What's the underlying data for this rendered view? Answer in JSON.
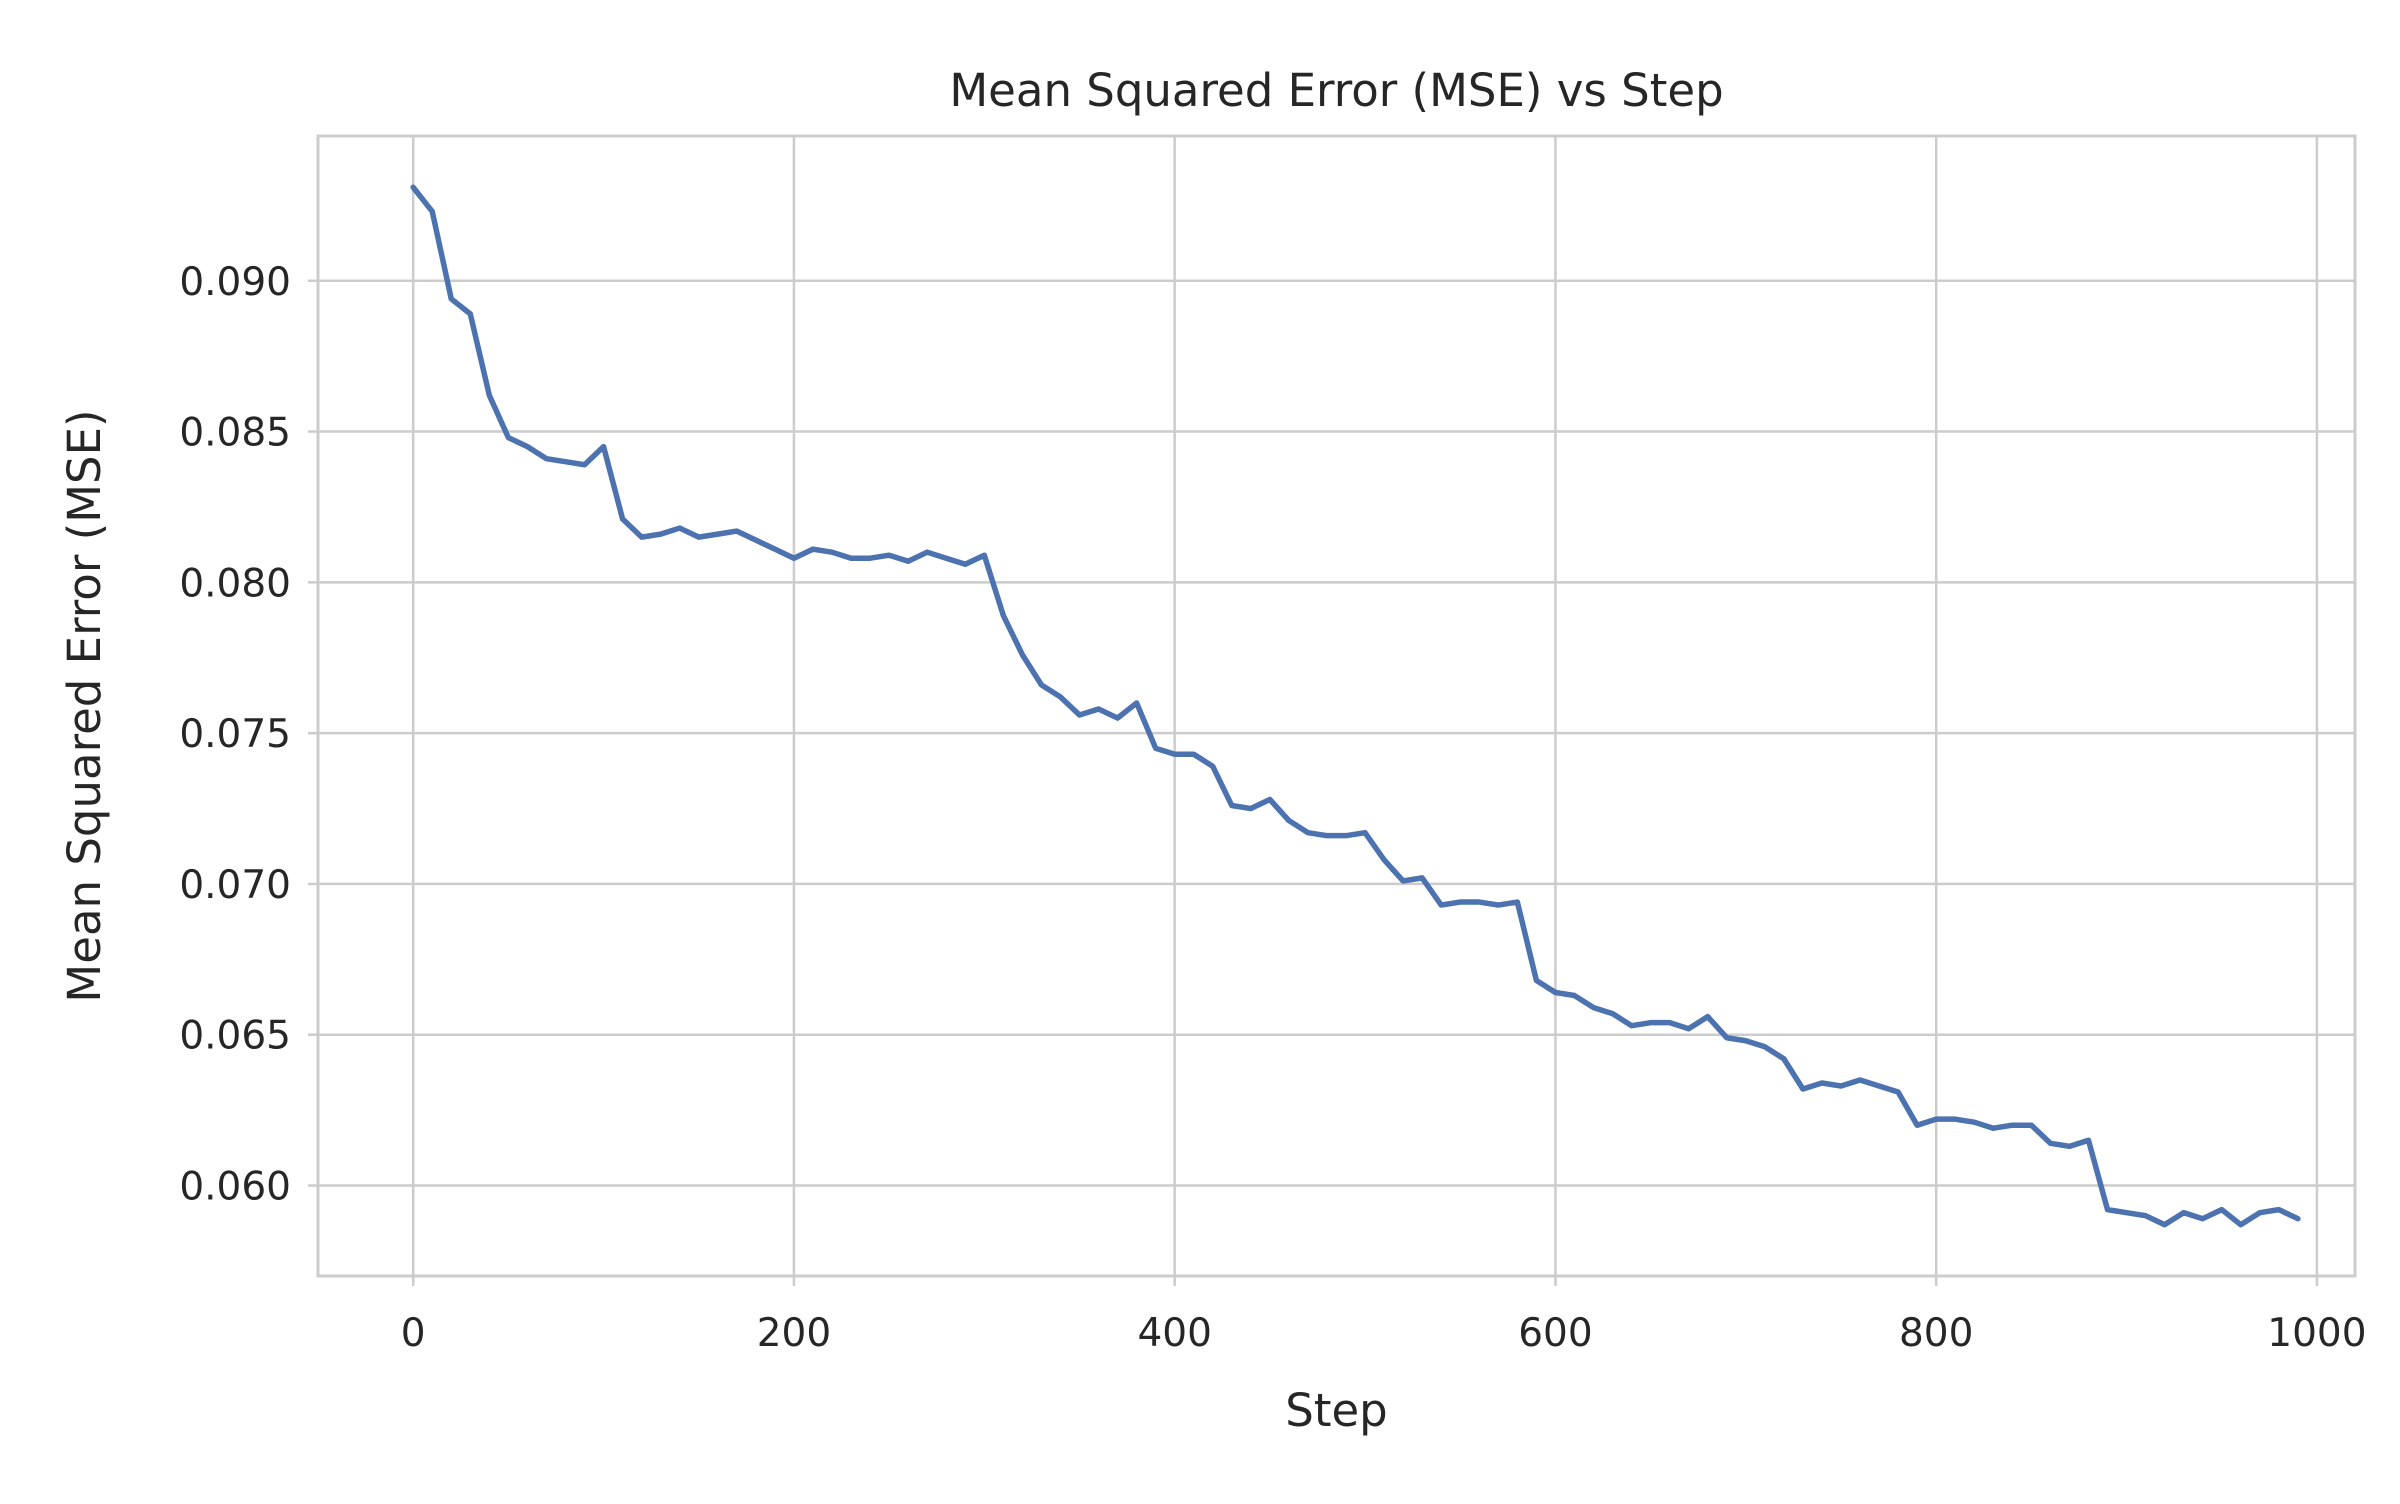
{
  "chart_data": {
    "type": "line",
    "title": "Mean Squared Error (MSE) vs Step",
    "xlabel": "Step",
    "ylabel": "Mean Squared Error (MSE)",
    "xlim": [
      -50,
      1020
    ],
    "ylim": [
      0.057,
      0.0948
    ],
    "xticks": [
      0,
      200,
      400,
      600,
      800,
      1000
    ],
    "xtick_labels": [
      "0",
      "200",
      "400",
      "600",
      "800",
      "1000"
    ],
    "yticks": [
      0.06,
      0.065,
      0.07,
      0.075,
      0.08,
      0.085,
      0.09
    ],
    "ytick_labels": [
      "0.060",
      "0.065",
      "0.070",
      "0.075",
      "0.080",
      "0.085",
      "0.090"
    ],
    "grid": true,
    "legend": false,
    "series": [
      {
        "color": "#4c72b0",
        "x": [
          0,
          10,
          20,
          30,
          40,
          50,
          60,
          70,
          80,
          90,
          100,
          110,
          120,
          130,
          140,
          150,
          160,
          170,
          180,
          190,
          200,
          210,
          220,
          230,
          240,
          250,
          260,
          270,
          280,
          290,
          300,
          310,
          320,
          330,
          340,
          350,
          360,
          370,
          380,
          390,
          400,
          410,
          420,
          430,
          440,
          450,
          460,
          470,
          480,
          490,
          500,
          510,
          520,
          530,
          540,
          550,
          560,
          570,
          580,
          590,
          600,
          610,
          620,
          630,
          640,
          650,
          660,
          670,
          680,
          690,
          700,
          710,
          720,
          730,
          740,
          750,
          760,
          770,
          780,
          790,
          800,
          810,
          820,
          830,
          840,
          850,
          860,
          870,
          880,
          890,
          900,
          910,
          920,
          930,
          940,
          950,
          960,
          970,
          980,
          990
        ],
        "y": [
          0.0931,
          0.0923,
          0.0894,
          0.0889,
          0.0862,
          0.0848,
          0.0845,
          0.0841,
          0.084,
          0.0839,
          0.0845,
          0.0821,
          0.0815,
          0.0816,
          0.0818,
          0.0815,
          0.0816,
          0.0817,
          0.0814,
          0.0811,
          0.0808,
          0.0811,
          0.081,
          0.0808,
          0.0808,
          0.0809,
          0.0807,
          0.081,
          0.0808,
          0.0806,
          0.0809,
          0.0789,
          0.0776,
          0.0766,
          0.0762,
          0.0756,
          0.0758,
          0.0755,
          0.076,
          0.0745,
          0.0743,
          0.0743,
          0.0739,
          0.0726,
          0.0725,
          0.0728,
          0.0721,
          0.0717,
          0.0716,
          0.0716,
          0.0717,
          0.0708,
          0.0701,
          0.0702,
          0.0693,
          0.0694,
          0.0694,
          0.0693,
          0.0694,
          0.0668,
          0.0664,
          0.0663,
          0.0659,
          0.0657,
          0.0653,
          0.0654,
          0.0654,
          0.0652,
          0.0656,
          0.0649,
          0.0648,
          0.0646,
          0.0642,
          0.0632,
          0.0634,
          0.0633,
          0.0635,
          0.0633,
          0.0631,
          0.062,
          0.0622,
          0.0622,
          0.0621,
          0.0619,
          0.062,
          0.062,
          0.0614,
          0.0613,
          0.0615,
          0.0592,
          0.0591,
          0.059,
          0.0587,
          0.0591,
          0.0589,
          0.0592,
          0.0587,
          0.0591,
          0.0592,
          0.0589
        ]
      }
    ]
  }
}
